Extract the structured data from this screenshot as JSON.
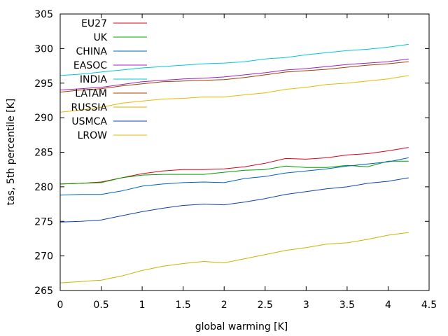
{
  "chart_data": {
    "type": "line",
    "title": "",
    "xlabel": "global warming [K]",
    "ylabel": "tas, 5th percentile [K]",
    "xlim": [
      0,
      4.5
    ],
    "ylim": [
      265,
      305
    ],
    "xticks": [
      0,
      0.5,
      1,
      1.5,
      2,
      2.5,
      3,
      3.5,
      4,
      4.5
    ],
    "xtick_labels": [
      "0",
      "0.5",
      "1",
      "1.5",
      "2",
      "2.5",
      "3",
      "3.5",
      "4",
      "4.5"
    ],
    "yticks": [
      265,
      270,
      275,
      280,
      285,
      290,
      295,
      300,
      305
    ],
    "ytick_labels": [
      "265",
      "270",
      "275",
      "280",
      "285",
      "290",
      "295",
      "300",
      "305"
    ],
    "grid": false,
    "legend_position": "top-left",
    "x": [
      0,
      0.25,
      0.5,
      0.75,
      1,
      1.25,
      1.5,
      1.75,
      2,
      2.25,
      2.5,
      2.75,
      3,
      3.25,
      3.5,
      3.75,
      4,
      4.25
    ],
    "series": [
      {
        "name": "EU27",
        "color": "#e0001a",
        "values": [
          280.4,
          280.5,
          280.7,
          281.3,
          281.9,
          282.3,
          282.5,
          282.5,
          282.6,
          282.9,
          283.4,
          284.1,
          284.0,
          284.2,
          284.6,
          284.8,
          285.2,
          285.7
        ]
      },
      {
        "name": "UK",
        "color": "#00a000",
        "values": [
          280.4,
          280.5,
          280.6,
          281.3,
          281.7,
          281.8,
          281.8,
          281.8,
          282.1,
          282.4,
          282.5,
          283.0,
          282.8,
          282.8,
          283.1,
          282.9,
          283.7,
          283.7
        ]
      },
      {
        "name": "CHINA",
        "color": "#0060c0",
        "values": [
          278.8,
          278.9,
          278.9,
          279.4,
          280.1,
          280.4,
          280.6,
          280.7,
          280.6,
          281.2,
          281.5,
          282.0,
          282.3,
          282.6,
          283.0,
          283.3,
          283.6,
          284.2
        ]
      },
      {
        "name": "EASOC",
        "color": "#a020c0",
        "values": [
          294.0,
          294.2,
          294.4,
          294.8,
          295.2,
          295.4,
          295.6,
          295.7,
          295.9,
          296.2,
          296.5,
          296.9,
          297.1,
          297.4,
          297.7,
          297.9,
          298.1,
          298.5
        ]
      },
      {
        "name": "INDIA",
        "color": "#00c8d8",
        "values": [
          296.1,
          296.3,
          296.6,
          296.9,
          297.2,
          297.4,
          297.6,
          297.8,
          297.9,
          298.1,
          298.5,
          298.7,
          299.1,
          299.4,
          299.7,
          299.9,
          300.2,
          300.6
        ]
      },
      {
        "name": "LATAM",
        "color": "#a04000",
        "values": [
          293.7,
          294.0,
          294.2,
          294.6,
          294.9,
          295.2,
          295.3,
          295.4,
          295.5,
          295.8,
          296.2,
          296.6,
          296.8,
          297.0,
          297.3,
          297.6,
          297.8,
          298.1
        ]
      },
      {
        "name": "RUSSIA",
        "color": "#c8b400",
        "values": [
          266.1,
          266.3,
          266.5,
          267.1,
          267.9,
          268.5,
          268.9,
          269.2,
          269.0,
          269.6,
          270.2,
          270.8,
          271.2,
          271.7,
          271.9,
          272.4,
          273.0,
          273.4
        ]
      },
      {
        "name": "USMCA",
        "color": "#1040b0",
        "values": [
          274.9,
          275.0,
          275.2,
          275.8,
          276.4,
          276.9,
          277.3,
          277.5,
          277.4,
          277.8,
          278.3,
          278.9,
          279.3,
          279.7,
          280.0,
          280.5,
          280.8,
          281.3
        ]
      },
      {
        "name": "LROW",
        "color": "#e8b800",
        "values": [
          290.8,
          291.1,
          291.5,
          292.1,
          292.4,
          292.7,
          292.8,
          293.0,
          293.0,
          293.3,
          293.6,
          294.1,
          294.4,
          294.8,
          295.0,
          295.3,
          295.6,
          296.1
        ]
      }
    ]
  }
}
